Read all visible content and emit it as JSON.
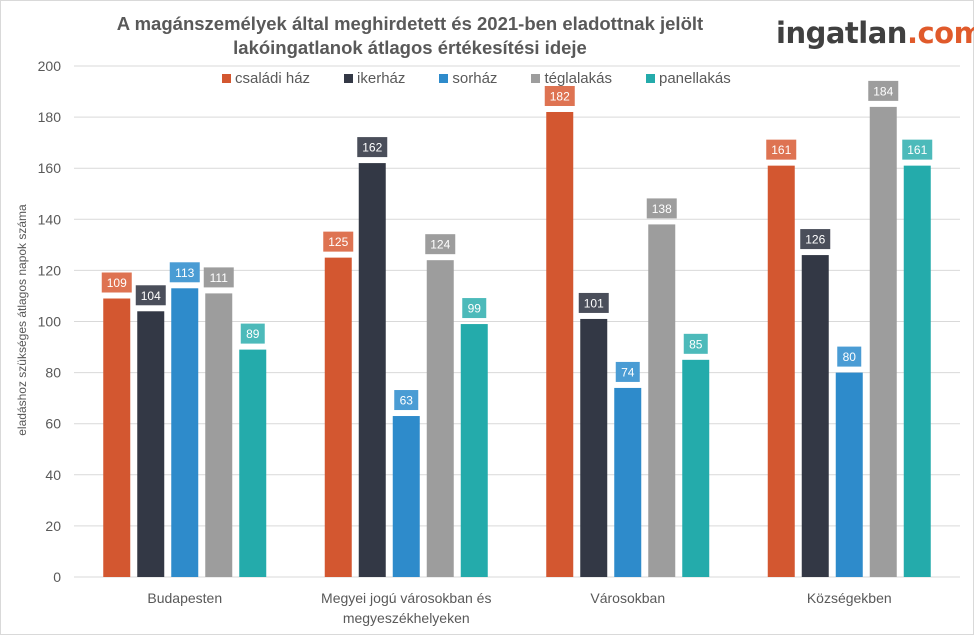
{
  "title_lines": [
    "A magánszemélyek által meghirdetett és 2021-ben eladottnak jelölt",
    "lakóingatlanok átlagos értékesítési ideje"
  ],
  "logo": {
    "main": "ingatlan",
    "suffix": ".com"
  },
  "chart_data": {
    "type": "bar",
    "title": "A magánszemélyek által meghirdetett és 2021-ben eladottnak jelölt lakóingatlanok átlagos értékesítési ideje",
    "xlabel": "",
    "ylabel": "eladáshoz szükséges átlagos napok száma",
    "ylim": [
      0,
      200
    ],
    "yticks": [
      0,
      20,
      40,
      60,
      80,
      100,
      120,
      140,
      160,
      180,
      200
    ],
    "grid": true,
    "legend_position": "top",
    "categories": [
      [
        "Budapesten"
      ],
      [
        "Megyei jogú városokban és",
        "megyeszékhelyeken"
      ],
      [
        "Városokban"
      ],
      [
        "Községekben"
      ]
    ],
    "series": [
      {
        "name": "családi ház",
        "color": "#d35730",
        "label_color": "#de7352",
        "values": [
          109,
          125,
          182,
          161
        ]
      },
      {
        "name": "ikerház",
        "color": "#333845",
        "label_color": "#4a4e5a",
        "values": [
          104,
          162,
          101,
          126
        ]
      },
      {
        "name": "sorház",
        "color": "#2e8bcb",
        "label_color": "#4a9cd4",
        "values": [
          113,
          63,
          74,
          80
        ]
      },
      {
        "name": "téglalakás",
        "color": "#9d9d9d",
        "label_color": "#9d9d9d",
        "values": [
          111,
          124,
          138,
          184
        ]
      },
      {
        "name": "panellakás",
        "color": "#24abab",
        "label_color": "#4cbaba",
        "values": [
          89,
          99,
          85,
          161
        ]
      }
    ]
  }
}
